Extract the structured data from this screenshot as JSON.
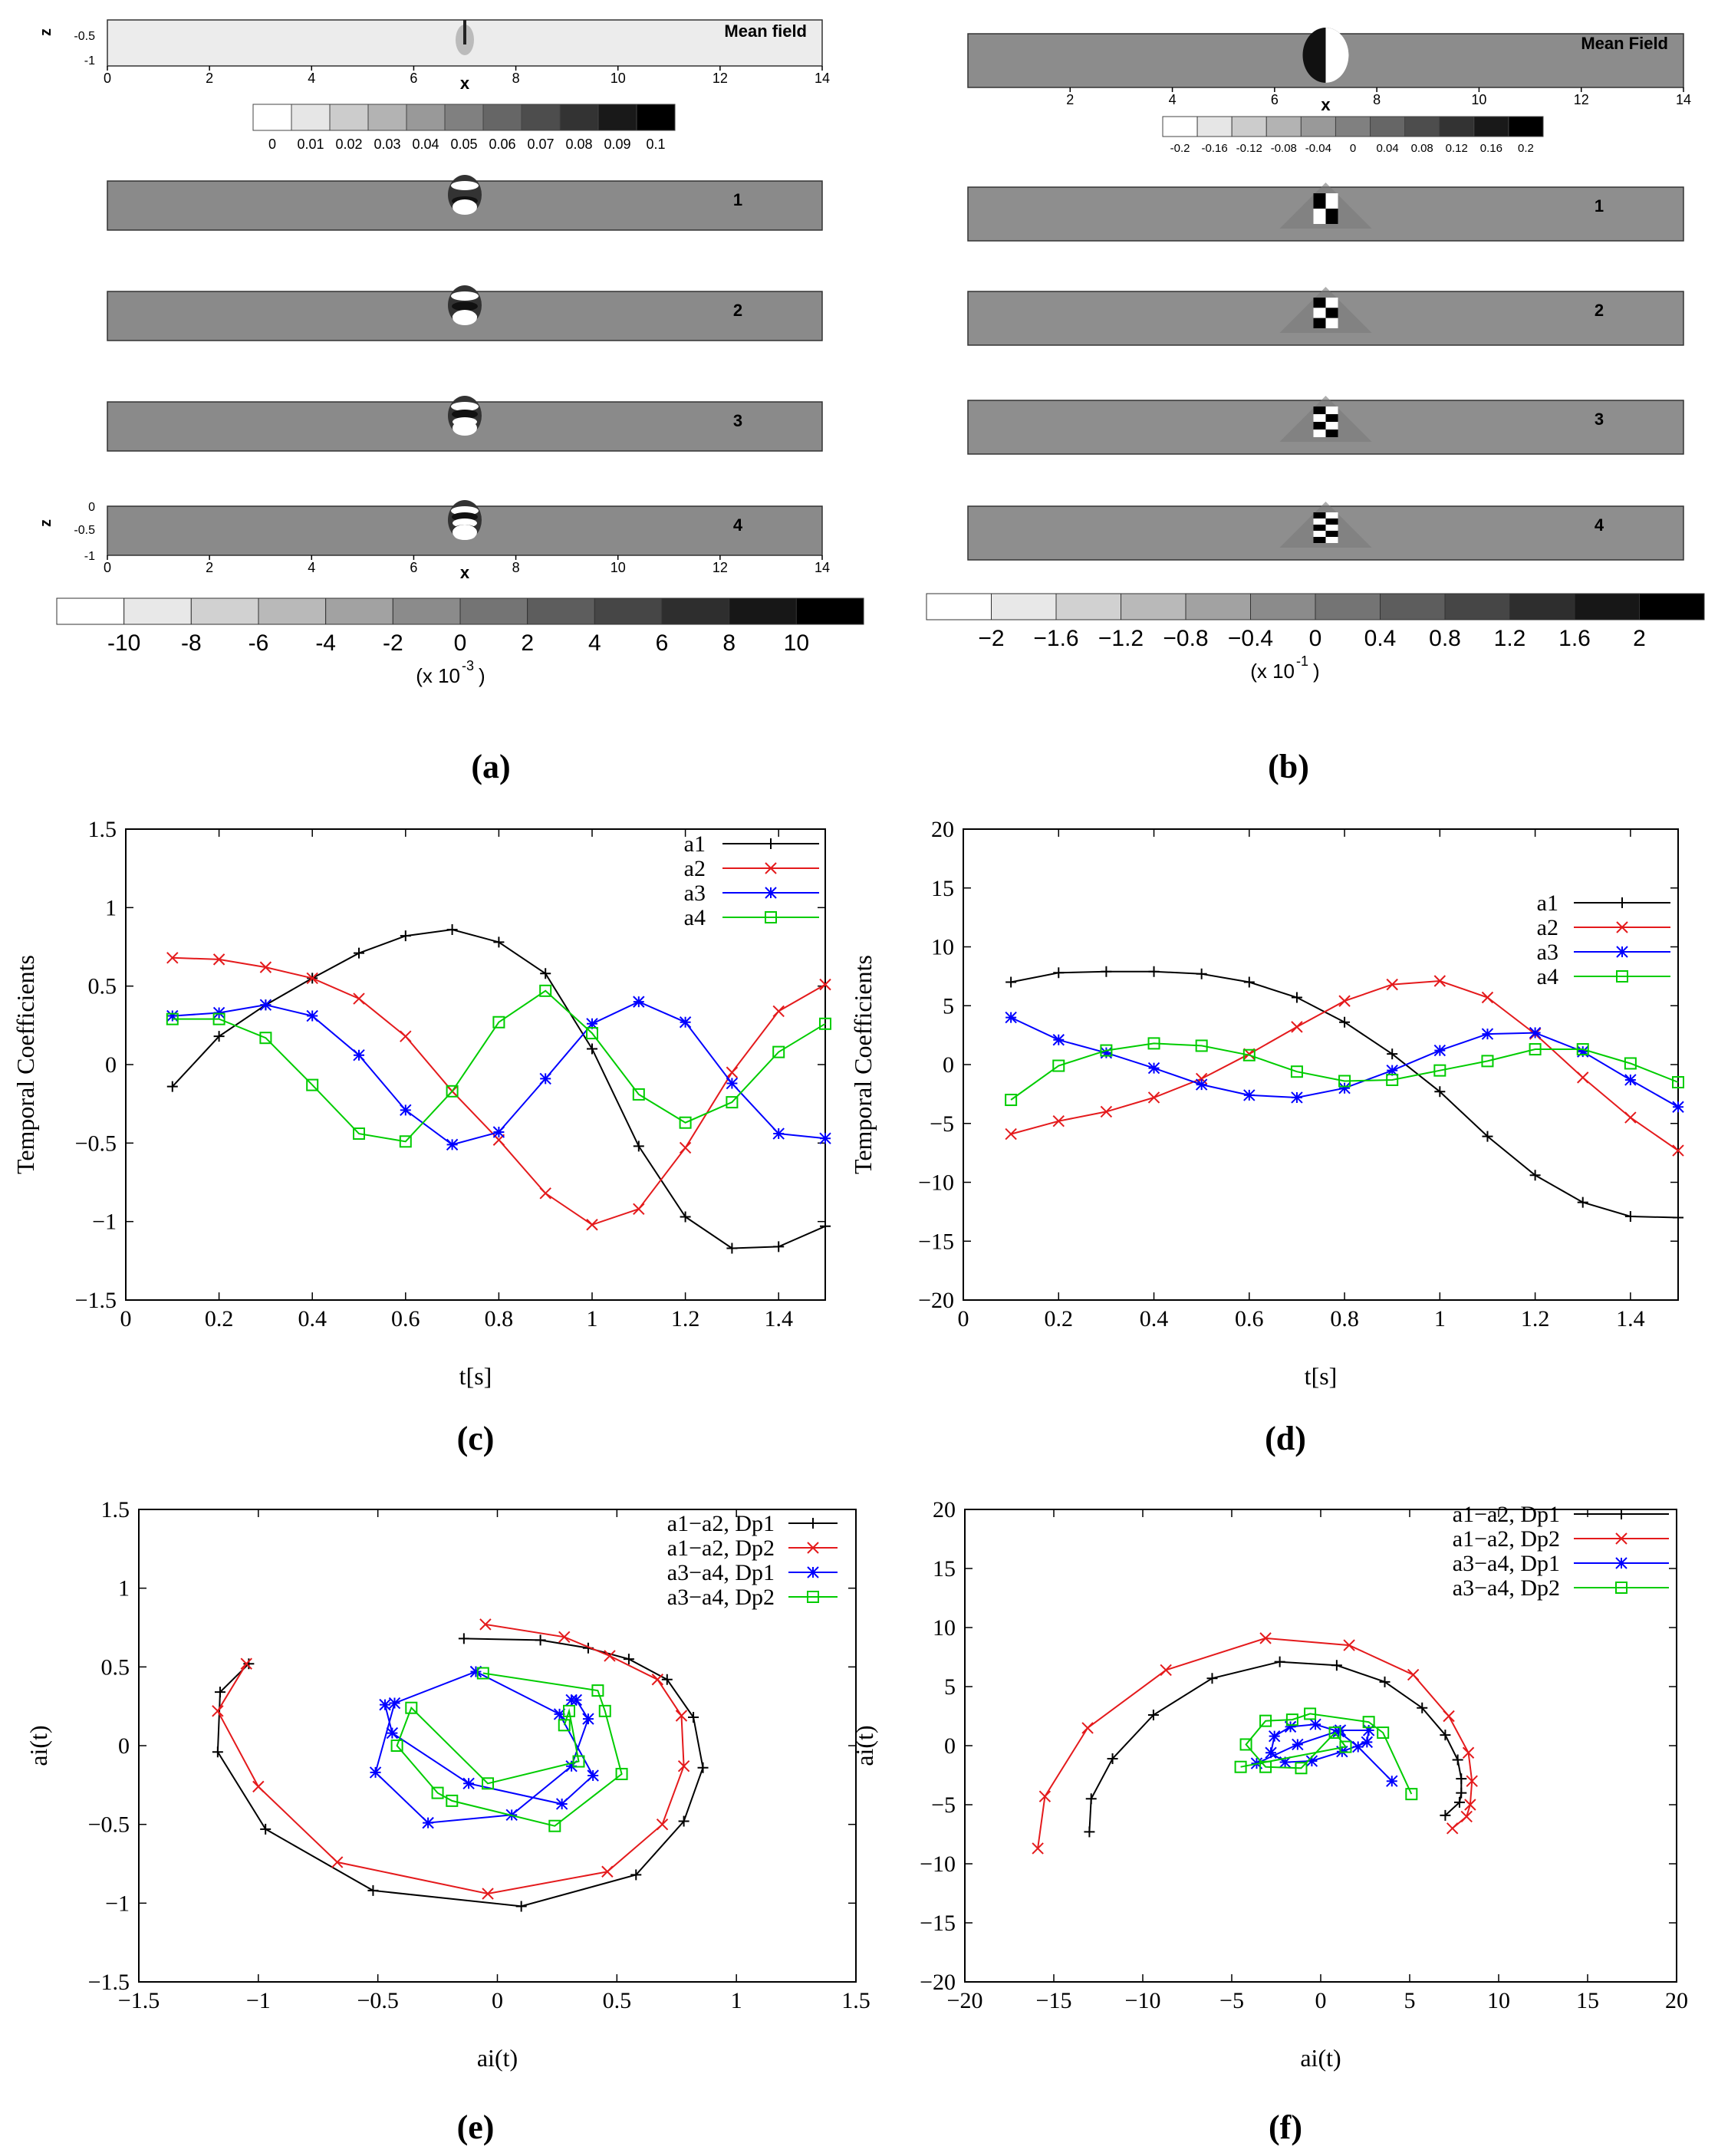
{
  "panel_labels": [
    "(a)",
    "(b)",
    "(c)",
    "(d)",
    "(e)",
    "(f)"
  ],
  "chart_data": [
    {
      "id": "a",
      "type": "heatmap",
      "top_colorbar": {
        "min": 0,
        "max": 0.1,
        "ticks": [
          "0",
          "0.01",
          "0.02",
          "0.03",
          "0.04",
          "0.05",
          "0.06",
          "0.07",
          "0.08",
          "0.09",
          "0.1"
        ]
      },
      "mean_axis": {
        "xticks": [
          "0",
          "2",
          "4",
          "6",
          "8",
          "10",
          "12",
          "14"
        ],
        "xlabel": "x",
        "zlabel": "z",
        "zticks": [
          "-0.5",
          "-1"
        ]
      },
      "bottom_axis": {
        "xticks": [
          "0",
          "2",
          "4",
          "6",
          "8",
          "10",
          "12",
          "14"
        ],
        "xlabel": "x",
        "zlabel": "z",
        "zticks": [
          "0",
          "-0.5",
          "-1"
        ]
      },
      "fields": [
        {
          "label": "Mean field",
          "x_center": 7.0
        },
        {
          "label": "1",
          "x_center": 7.0
        },
        {
          "label": "2",
          "x_center": 7.0
        },
        {
          "label": "3",
          "x_center": 7.0
        },
        {
          "label": "4",
          "x_center": 7.0
        }
      ],
      "colorbar": {
        "min": -10,
        "max": 10,
        "ticks": [
          "-10",
          "-8",
          "-6",
          "-4",
          "-2",
          "0",
          "2",
          "4",
          "6",
          "8",
          "10"
        ],
        "unit_base": "(x 10",
        "unit_exp": "-3",
        "unit_close": ")"
      }
    },
    {
      "id": "b",
      "type": "heatmap",
      "top_colorbar": {
        "min": -0.2,
        "max": 0.2,
        "ticks": [
          "-0.2",
          "-0.16",
          "-0.12",
          "-0.08",
          "-0.04",
          "0",
          "0.04",
          "0.08",
          "0.12",
          "0.16",
          "0.2"
        ]
      },
      "mean_axis": {
        "xticks": [
          "2",
          "4",
          "6",
          "8",
          "10",
          "12",
          "14"
        ],
        "xlabel": "x"
      },
      "fields": [
        {
          "label": "Mean Field",
          "x_center": 7.0
        },
        {
          "label": "1",
          "x_center": 7.0
        },
        {
          "label": "2",
          "x_center": 7.0
        },
        {
          "label": "3",
          "x_center": 7.0
        },
        {
          "label": "4",
          "x_center": 7.0
        }
      ],
      "colorbar": {
        "min": -2,
        "max": 2,
        "ticks": [
          "−2",
          "−1.6",
          "−1.2",
          "−0.8",
          "−0.4",
          "0",
          "0.4",
          "0.8",
          "1.2",
          "1.6",
          "2"
        ],
        "unit_base": "(x 10",
        "unit_exp": "-1",
        "unit_close": ")"
      }
    },
    {
      "id": "c",
      "type": "line",
      "xlabel": "t[s]",
      "ylabel": "Temporal Coefficients",
      "xlim": [
        0,
        1.5
      ],
      "ylim": [
        -1.5,
        1.5
      ],
      "xticks": [
        0,
        0.2,
        0.4,
        0.6,
        0.8,
        1,
        1.2,
        1.4
      ],
      "yticks": [
        -1.5,
        -1,
        -0.5,
        0,
        0.5,
        1,
        1.5
      ],
      "legend": "top-right",
      "x": [
        0.1,
        0.2,
        0.3,
        0.4,
        0.5,
        0.6,
        0.7,
        0.8,
        0.9,
        1.0,
        1.1,
        1.2,
        1.3,
        1.4,
        1.5
      ],
      "series": [
        {
          "name": "a1",
          "color": "#000000",
          "marker": "plus",
          "values": [
            -0.14,
            0.18,
            0.38,
            0.55,
            0.71,
            0.82,
            0.86,
            0.78,
            0.58,
            0.1,
            -0.52,
            -0.97,
            -1.17,
            -1.16,
            -1.03
          ]
        },
        {
          "name": "a2",
          "color": "#e41a1c",
          "marker": "x",
          "values": [
            0.68,
            0.67,
            0.62,
            0.55,
            0.42,
            0.18,
            -0.17,
            -0.48,
            -0.82,
            -1.02,
            -0.92,
            -0.53,
            -0.05,
            0.34,
            0.51
          ]
        },
        {
          "name": "a3",
          "color": "#0000ff",
          "marker": "star",
          "values": [
            0.31,
            0.33,
            0.38,
            0.31,
            0.06,
            -0.29,
            -0.51,
            -0.43,
            -0.09,
            0.26,
            0.4,
            0.27,
            -0.12,
            -0.44,
            -0.47
          ]
        },
        {
          "name": "a4",
          "color": "#00cc00",
          "marker": "square",
          "values": [
            0.29,
            0.29,
            0.17,
            -0.13,
            -0.44,
            -0.49,
            -0.17,
            0.27,
            0.47,
            0.2,
            -0.19,
            -0.37,
            -0.24,
            0.08,
            0.26
          ]
        }
      ]
    },
    {
      "id": "d",
      "type": "line",
      "xlabel": "t[s]",
      "ylabel": "Temporal Coefficients",
      "xlim": [
        0,
        1.5
      ],
      "ylim": [
        -20,
        20
      ],
      "xticks": [
        0,
        0.2,
        0.4,
        0.6,
        0.8,
        1,
        1.2,
        1.4
      ],
      "yticks": [
        -20,
        -15,
        -10,
        -5,
        0,
        5,
        10,
        15,
        20
      ],
      "legend": "top-right",
      "x": [
        0.1,
        0.2,
        0.3,
        0.4,
        0.5,
        0.6,
        0.7,
        0.8,
        0.9,
        1.0,
        1.1,
        1.2,
        1.3,
        1.4,
        1.5
      ],
      "series": [
        {
          "name": "a1",
          "color": "#000000",
          "marker": "plus",
          "values": [
            7.0,
            7.8,
            7.9,
            7.9,
            7.7,
            7.0,
            5.7,
            3.6,
            0.9,
            -2.3,
            -6.1,
            -9.4,
            -11.7,
            -12.9,
            -13.0
          ]
        },
        {
          "name": "a2",
          "color": "#e41a1c",
          "marker": "x",
          "values": [
            -5.9,
            -4.8,
            -4.0,
            -2.8,
            -1.2,
            0.9,
            3.2,
            5.4,
            6.8,
            7.1,
            5.7,
            2.6,
            -1.1,
            -4.5,
            -7.3
          ]
        },
        {
          "name": "a3",
          "color": "#0000ff",
          "marker": "star",
          "values": [
            4.0,
            2.1,
            1.0,
            -0.3,
            -1.7,
            -2.6,
            -2.8,
            -2.0,
            -0.5,
            1.2,
            2.6,
            2.7,
            1.1,
            -1.3,
            -3.6
          ]
        },
        {
          "name": "a4",
          "color": "#00cc00",
          "marker": "square",
          "values": [
            -3.0,
            -0.1,
            1.2,
            1.8,
            1.6,
            0.8,
            -0.6,
            -1.4,
            -1.3,
            -0.5,
            0.3,
            1.3,
            1.3,
            0.1,
            -1.5
          ]
        }
      ]
    },
    {
      "id": "e",
      "type": "scatter",
      "xlabel": "ai(t)",
      "ylabel": "ai(t)",
      "xlim": [
        -1.5,
        1.5
      ],
      "ylim": [
        -1.5,
        1.5
      ],
      "xticks": [
        -1.5,
        -1,
        -0.5,
        0,
        0.5,
        1,
        1.5
      ],
      "yticks": [
        -1.5,
        -1,
        -0.5,
        0,
        0.5,
        1,
        1.5
      ],
      "legend": "top-right",
      "series": [
        {
          "name": "a1−a2, Dp1",
          "color": "#000000",
          "marker": "plus",
          "points": [
            [
              -0.14,
              0.68
            ],
            [
              0.18,
              0.67
            ],
            [
              0.38,
              0.62
            ],
            [
              0.55,
              0.55
            ],
            [
              0.71,
              0.42
            ],
            [
              0.82,
              0.18
            ],
            [
              0.86,
              -0.14
            ],
            [
              0.78,
              -0.48
            ],
            [
              0.58,
              -0.82
            ],
            [
              0.1,
              -1.02
            ],
            [
              -0.52,
              -0.92
            ],
            [
              -0.97,
              -0.53
            ],
            [
              -1.17,
              -0.04
            ],
            [
              -1.16,
              0.34
            ],
            [
              -1.04,
              0.52
            ]
          ]
        },
        {
          "name": "a1−a2, Dp2",
          "color": "#e41a1c",
          "marker": "x",
          "points": [
            [
              -0.05,
              0.77
            ],
            [
              0.28,
              0.69
            ],
            [
              0.47,
              0.57
            ],
            [
              0.67,
              0.42
            ],
            [
              0.77,
              0.19
            ],
            [
              0.78,
              -0.13
            ],
            [
              0.69,
              -0.5
            ],
            [
              0.46,
              -0.8
            ],
            [
              -0.04,
              -0.94
            ],
            [
              -0.67,
              -0.74
            ],
            [
              -1.0,
              -0.26
            ],
            [
              -1.17,
              0.22
            ],
            [
              -1.05,
              0.52
            ]
          ]
        },
        {
          "name": "a3−a4, Dp1",
          "color": "#0000ff",
          "marker": "star",
          "points": [
            [
              0.31,
              0.29
            ],
            [
              0.33,
              0.29
            ],
            [
              0.38,
              0.17
            ],
            [
              0.31,
              -0.13
            ],
            [
              0.06,
              -0.44
            ],
            [
              -0.29,
              -0.49
            ],
            [
              -0.51,
              -0.17
            ],
            [
              -0.43,
              0.27
            ],
            [
              -0.09,
              0.47
            ],
            [
              0.26,
              0.2
            ],
            [
              0.4,
              -0.19
            ],
            [
              0.27,
              -0.37
            ],
            [
              -0.12,
              -0.24
            ],
            [
              -0.44,
              0.08
            ],
            [
              -0.47,
              0.26
            ]
          ]
        },
        {
          "name": "a3−a4, Dp2",
          "color": "#00cc00",
          "marker": "square",
          "points": [
            [
              -0.06,
              0.46
            ],
            [
              0.42,
              0.35
            ],
            [
              0.45,
              0.22
            ],
            [
              0.52,
              -0.18
            ],
            [
              0.24,
              -0.51
            ],
            [
              -0.19,
              -0.35
            ],
            [
              -0.25,
              -0.3
            ],
            [
              -0.42,
              0.0
            ],
            [
              -0.36,
              0.24
            ],
            [
              -0.04,
              -0.24
            ],
            [
              0.34,
              -0.1
            ],
            [
              0.3,
              0.22
            ],
            [
              0.28,
              0.13
            ]
          ]
        }
      ]
    },
    {
      "id": "f",
      "type": "scatter",
      "xlabel": "ai(t)",
      "ylabel": "ai(t)",
      "xlim": [
        -20,
        20
      ],
      "ylim": [
        -20,
        20
      ],
      "xticks": [
        -20,
        -15,
        -10,
        -5,
        0,
        5,
        10,
        15,
        20
      ],
      "yticks": [
        -20,
        -15,
        -10,
        -5,
        0,
        5,
        10,
        15,
        20
      ],
      "legend": "top-right",
      "series": [
        {
          "name": "a1−a2, Dp1",
          "color": "#000000",
          "marker": "plus",
          "points": [
            [
              7.0,
              -5.9
            ],
            [
              7.8,
              -4.8
            ],
            [
              7.9,
              -4.0
            ],
            [
              7.9,
              -2.8
            ],
            [
              7.7,
              -1.2
            ],
            [
              7.0,
              0.9
            ],
            [
              5.7,
              3.2
            ],
            [
              3.6,
              5.4
            ],
            [
              0.9,
              6.8
            ],
            [
              -2.3,
              7.1
            ],
            [
              -6.1,
              5.7
            ],
            [
              -9.4,
              2.6
            ],
            [
              -11.7,
              -1.1
            ],
            [
              -12.9,
              -4.5
            ],
            [
              -13.0,
              -7.3
            ]
          ]
        },
        {
          "name": "a1−a2, Dp2",
          "color": "#e41a1c",
          "marker": "x",
          "points": [
            [
              7.4,
              -7.0
            ],
            [
              8.2,
              -6.0
            ],
            [
              8.4,
              -5.0
            ],
            [
              8.5,
              -3.0
            ],
            [
              8.3,
              -0.6
            ],
            [
              7.2,
              2.5
            ],
            [
              5.2,
              6.0
            ],
            [
              1.6,
              8.5
            ],
            [
              -3.1,
              9.1
            ],
            [
              -8.7,
              6.4
            ],
            [
              -13.1,
              1.5
            ],
            [
              -15.5,
              -4.3
            ],
            [
              -15.9,
              -8.7
            ]
          ]
        },
        {
          "name": "a3−a4, Dp1",
          "color": "#0000ff",
          "marker": "star",
          "points": [
            [
              4.0,
              -3.0
            ],
            [
              2.1,
              -0.1
            ],
            [
              1.0,
              1.2
            ],
            [
              -0.3,
              1.8
            ],
            [
              -1.7,
              1.6
            ],
            [
              -2.6,
              0.8
            ],
            [
              -2.8,
              -0.6
            ],
            [
              -2.0,
              -1.4
            ],
            [
              -0.5,
              -1.3
            ],
            [
              1.2,
              -0.5
            ],
            [
              2.6,
              0.3
            ],
            [
              2.7,
              1.3
            ],
            [
              1.1,
              1.3
            ],
            [
              -1.3,
              0.1
            ],
            [
              -3.6,
              -1.5
            ]
          ]
        },
        {
          "name": "a3−a4, Dp2",
          "color": "#00cc00",
          "marker": "square",
          "points": [
            [
              5.1,
              -4.1
            ],
            [
              3.5,
              1.1
            ],
            [
              2.7,
              2.0
            ],
            [
              -0.6,
              2.7
            ],
            [
              -1.6,
              2.2
            ],
            [
              -3.1,
              2.1
            ],
            [
              -4.2,
              0.1
            ],
            [
              -3.1,
              -1.8
            ],
            [
              -1.1,
              -1.9
            ],
            [
              0.8,
              1.1
            ],
            [
              1.4,
              -0.1
            ],
            [
              -4.5,
              -1.8
            ]
          ]
        }
      ]
    }
  ]
}
